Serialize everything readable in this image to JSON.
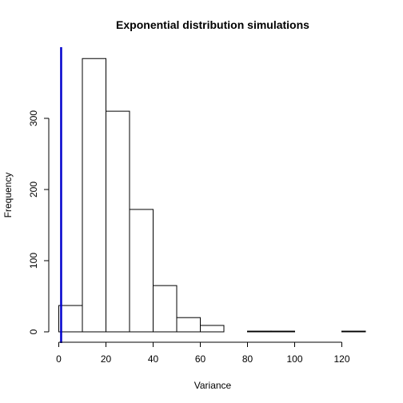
{
  "chart_data": {
    "type": "histogram",
    "title": "Exponential distribution simulations",
    "xlabel": "Variance",
    "ylabel": "Frequency",
    "xlim": [
      0,
      130
    ],
    "ylim": [
      0,
      400
    ],
    "x_ticks": [
      0,
      20,
      40,
      60,
      80,
      100,
      120
    ],
    "y_ticks": [
      0,
      100,
      200,
      300
    ],
    "bins": [
      {
        "from": 0,
        "to": 10,
        "count": 37
      },
      {
        "from": 10,
        "to": 20,
        "count": 384
      },
      {
        "from": 20,
        "to": 30,
        "count": 310
      },
      {
        "from": 30,
        "to": 40,
        "count": 172
      },
      {
        "from": 40,
        "to": 50,
        "count": 65
      },
      {
        "from": 50,
        "to": 60,
        "count": 20
      },
      {
        "from": 60,
        "to": 70,
        "count": 9
      },
      {
        "from": 70,
        "to": 80,
        "count": 0
      },
      {
        "from": 80,
        "to": 90,
        "count": 1
      },
      {
        "from": 90,
        "to": 100,
        "count": 1
      },
      {
        "from": 100,
        "to": 110,
        "count": 0
      },
      {
        "from": 110,
        "to": 120,
        "count": 0
      },
      {
        "from": 120,
        "to": 130,
        "count": 1
      }
    ],
    "reference_line": {
      "x": 1,
      "color": "#0000cc"
    },
    "grid": false,
    "legend": "none"
  }
}
